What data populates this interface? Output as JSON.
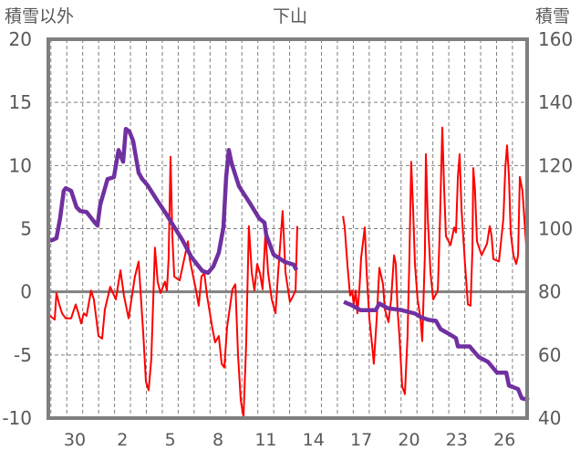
{
  "chart_data": {
    "type": "line",
    "title": "下山",
    "ylabel_left": "積雪以外",
    "ylabel_right": "積雪",
    "ylim_left": [
      -10,
      20
    ],
    "ylim_right": [
      40,
      160
    ],
    "yticks_left": [
      "20",
      "15",
      "10",
      "5",
      "0",
      "-5",
      "-10"
    ],
    "yticks_right": [
      "160",
      "140",
      "120",
      "100",
      "80",
      "60",
      "40"
    ],
    "x_unit": "day index (0 = day labelled 30)",
    "xlim": [
      -1.66,
      28.42
    ],
    "xticks": [
      {
        "t": 0,
        "label": "30"
      },
      {
        "t": 3,
        "label": "2"
      },
      {
        "t": 6,
        "label": "5"
      },
      {
        "t": 9,
        "label": "8"
      },
      {
        "t": 12,
        "label": "11"
      },
      {
        "t": 15,
        "label": "14"
      },
      {
        "t": 18,
        "label": "17"
      },
      {
        "t": 21,
        "label": "20"
      },
      {
        "t": 24,
        "label": "23"
      },
      {
        "t": 27,
        "label": "26"
      }
    ],
    "grid": true,
    "series": [
      {
        "name": "積雪以外",
        "axis": "left",
        "color": "#ff0000",
        "points": [
          [
            -1.55,
            -1.9
          ],
          [
            -1.26,
            -2.2
          ],
          [
            -1.15,
            -0.1
          ],
          [
            -0.97,
            -1.0
          ],
          [
            -0.8,
            -1.7
          ],
          [
            -0.57,
            -2.1
          ],
          [
            -0.23,
            -2.1
          ],
          [
            0.06,
            -1.0
          ],
          [
            0.23,
            -1.7
          ],
          [
            0.4,
            -2.5
          ],
          [
            0.57,
            -1.7
          ],
          [
            0.74,
            -1.9
          ],
          [
            1.03,
            0.1
          ],
          [
            1.2,
            -0.6
          ],
          [
            1.38,
            -2.4
          ],
          [
            1.49,
            -3.5
          ],
          [
            1.72,
            -3.7
          ],
          [
            1.89,
            -1.4
          ],
          [
            2.23,
            0.4
          ],
          [
            2.58,
            -0.6
          ],
          [
            2.87,
            1.7
          ],
          [
            3.09,
            -0.3
          ],
          [
            3.38,
            -2.1
          ],
          [
            3.78,
            1.2
          ],
          [
            4.01,
            2.4
          ],
          [
            4.3,
            -3.2
          ],
          [
            4.47,
            -7.1
          ],
          [
            4.64,
            -7.8
          ],
          [
            4.81,
            -5.3
          ],
          [
            5.04,
            3.5
          ],
          [
            5.21,
            0.8
          ],
          [
            5.39,
            -0.1
          ],
          [
            5.67,
            0.8
          ],
          [
            5.79,
            0.1
          ],
          [
            5.9,
            2.6
          ],
          [
            6.02,
            10.7
          ],
          [
            6.13,
            4.4
          ],
          [
            6.25,
            1.2
          ],
          [
            6.59,
            0.9
          ],
          [
            6.93,
            2.9
          ],
          [
            7.11,
            4.0
          ],
          [
            7.22,
            2.6
          ],
          [
            7.62,
            0.1
          ],
          [
            7.79,
            -1.1
          ],
          [
            7.96,
            1.2
          ],
          [
            8.14,
            1.5
          ],
          [
            8.31,
            -0.3
          ],
          [
            8.65,
            -2.9
          ],
          [
            8.82,
            -4.0
          ],
          [
            9.05,
            -3.5
          ],
          [
            9.23,
            -5.7
          ],
          [
            9.4,
            -6.0
          ],
          [
            9.57,
            -2.8
          ],
          [
            9.91,
            0.2
          ],
          [
            10.09,
            0.6
          ],
          [
            10.26,
            -5.0
          ],
          [
            10.43,
            -8.6
          ],
          [
            10.6,
            -9.9
          ],
          [
            10.77,
            -4.2
          ],
          [
            10.94,
            5.2
          ],
          [
            11.12,
            1.5
          ],
          [
            11.29,
            0.1
          ],
          [
            11.46,
            2.2
          ],
          [
            11.63,
            1.5
          ],
          [
            11.8,
            0.2
          ],
          [
            11.98,
            4.7
          ],
          [
            12.15,
            1.5
          ],
          [
            12.38,
            -0.6
          ],
          [
            12.61,
            -1.7
          ],
          [
            12.78,
            1.5
          ],
          [
            12.95,
            4.5
          ],
          [
            13.06,
            6.4
          ],
          [
            13.24,
            1.5
          ],
          [
            13.52,
            -0.8
          ],
          [
            13.69,
            -0.4
          ],
          [
            13.87,
            0.1
          ],
          [
            13.98,
            5.2
          ],
          null,
          [
            16.85,
            6.0
          ],
          [
            16.96,
            5.1
          ],
          [
            17.13,
            2.1
          ],
          [
            17.3,
            -0.3
          ],
          [
            17.42,
            0.1
          ],
          [
            17.53,
            -1.0
          ],
          [
            17.65,
            0.1
          ],
          [
            17.76,
            -1.7
          ],
          [
            17.88,
            0.1
          ],
          [
            17.99,
            2.7
          ],
          [
            18.22,
            5.1
          ],
          [
            18.34,
            1.5
          ],
          [
            18.51,
            -2.1
          ],
          [
            18.68,
            -4.2
          ],
          [
            18.79,
            -5.7
          ],
          [
            18.97,
            -2.1
          ],
          [
            19.14,
            1.9
          ],
          [
            19.37,
            0.6
          ],
          [
            19.48,
            -1.4
          ],
          [
            19.71,
            -2.4
          ],
          [
            19.88,
            -0.6
          ],
          [
            20.06,
            2.9
          ],
          [
            20.17,
            2.2
          ],
          [
            20.28,
            -1.4
          ],
          [
            20.4,
            -3.5
          ],
          [
            20.57,
            -7.5
          ],
          [
            20.74,
            -8.1
          ],
          [
            20.91,
            -3.5
          ],
          [
            21.03,
            2.9
          ],
          [
            21.14,
            10.3
          ],
          [
            21.26,
            6.5
          ],
          [
            21.37,
            2.2
          ],
          [
            21.54,
            -0.6
          ],
          [
            21.72,
            -2.1
          ],
          [
            21.83,
            -3.9
          ],
          [
            22.0,
            2.9
          ],
          [
            22.06,
            10.9
          ],
          [
            22.18,
            5.8
          ],
          [
            22.35,
            1.5
          ],
          [
            22.52,
            -0.6
          ],
          [
            22.81,
            0.1
          ],
          [
            22.92,
            4.4
          ],
          [
            23.09,
            13.0
          ],
          [
            23.21,
            8.0
          ],
          [
            23.32,
            4.4
          ],
          [
            23.61,
            3.7
          ],
          [
            23.84,
            5.1
          ],
          [
            23.95,
            4.7
          ],
          [
            24.07,
            9.1
          ],
          [
            24.18,
            10.9
          ],
          [
            24.3,
            6.5
          ],
          [
            24.52,
            2.2
          ],
          [
            24.7,
            -1.0
          ],
          [
            24.87,
            -1.1
          ],
          [
            24.98,
            3.3
          ],
          [
            25.04,
            9.8
          ],
          [
            25.15,
            8.0
          ],
          [
            25.27,
            4.0
          ],
          [
            25.56,
            2.9
          ],
          [
            25.9,
            3.8
          ],
          [
            26.07,
            5.2
          ],
          [
            26.19,
            4.4
          ],
          [
            26.3,
            2.6
          ],
          [
            26.65,
            2.4
          ],
          [
            26.76,
            3.7
          ],
          [
            26.93,
            5.8
          ],
          [
            27.05,
            9.8
          ],
          [
            27.16,
            11.6
          ],
          [
            27.28,
            9.1
          ],
          [
            27.39,
            4.7
          ],
          [
            27.56,
            2.9
          ],
          [
            27.73,
            2.2
          ],
          [
            27.85,
            2.9
          ],
          [
            27.96,
            9.1
          ],
          [
            28.13,
            8.0
          ],
          [
            28.25,
            5.8
          ],
          [
            28.36,
            3.7
          ],
          [
            28.42,
            3.3
          ]
        ]
      },
      {
        "name": "積雪",
        "axis": "right",
        "color": "#7030a0",
        "points": [
          [
            -1.55,
            96.1
          ],
          [
            -1.15,
            97.0
          ],
          [
            -0.92,
            103.3
          ],
          [
            -0.69,
            112.0
          ],
          [
            -0.57,
            112.8
          ],
          [
            -0.23,
            112.0
          ],
          [
            0.11,
            106.8
          ],
          [
            0.34,
            105.6
          ],
          [
            0.74,
            105.3
          ],
          [
            1.26,
            101.9
          ],
          [
            1.43,
            101.0
          ],
          [
            1.6,
            107.6
          ],
          [
            2.06,
            115.7
          ],
          [
            2.46,
            116.3
          ],
          [
            2.75,
            124.9
          ],
          [
            3.04,
            121.2
          ],
          [
            3.21,
            131.6
          ],
          [
            3.44,
            130.7
          ],
          [
            3.67,
            127.8
          ],
          [
            4.01,
            117.7
          ],
          [
            4.24,
            115.7
          ],
          [
            4.58,
            113.7
          ],
          [
            5.16,
            109.1
          ],
          [
            5.73,
            104.8
          ],
          [
            6.19,
            101.0
          ],
          [
            6.76,
            96.4
          ],
          [
            7.34,
            90.9
          ],
          [
            8.02,
            86.6
          ],
          [
            8.37,
            86.0
          ],
          [
            8.71,
            88.1
          ],
          [
            9.05,
            92.4
          ],
          [
            9.34,
            100.4
          ],
          [
            9.51,
            116.3
          ],
          [
            9.68,
            124.9
          ],
          [
            9.86,
            120.6
          ],
          [
            10.32,
            113.4
          ],
          [
            10.95,
            108.5
          ],
          [
            11.58,
            103.3
          ],
          [
            11.92,
            101.9
          ],
          [
            12.03,
            98.1
          ],
          [
            12.49,
            91.8
          ],
          [
            13.18,
            89.5
          ],
          [
            13.75,
            88.6
          ],
          [
            13.93,
            86.9
          ],
          null,
          [
            16.91,
            76.8
          ],
          [
            17.42,
            75.7
          ],
          [
            17.94,
            74.2
          ],
          [
            18.91,
            74.2
          ],
          [
            19.14,
            76.3
          ],
          [
            19.66,
            74.8
          ],
          [
            20.52,
            74.2
          ],
          [
            21.38,
            73.1
          ],
          [
            21.78,
            71.9
          ],
          [
            22.23,
            71.1
          ],
          [
            22.69,
            70.8
          ],
          [
            22.98,
            68.2
          ],
          [
            23.67,
            66.2
          ],
          [
            23.95,
            65.3
          ],
          [
            24.07,
            62.7
          ],
          [
            24.81,
            62.7
          ],
          [
            25.39,
            59.3
          ],
          [
            25.96,
            57.8
          ],
          [
            26.53,
            54.4
          ],
          [
            27.11,
            54.4
          ],
          [
            27.28,
            50.3
          ],
          [
            27.85,
            49.2
          ],
          [
            28.08,
            46.3
          ],
          [
            28.54,
            45.7
          ]
        ]
      }
    ]
  }
}
